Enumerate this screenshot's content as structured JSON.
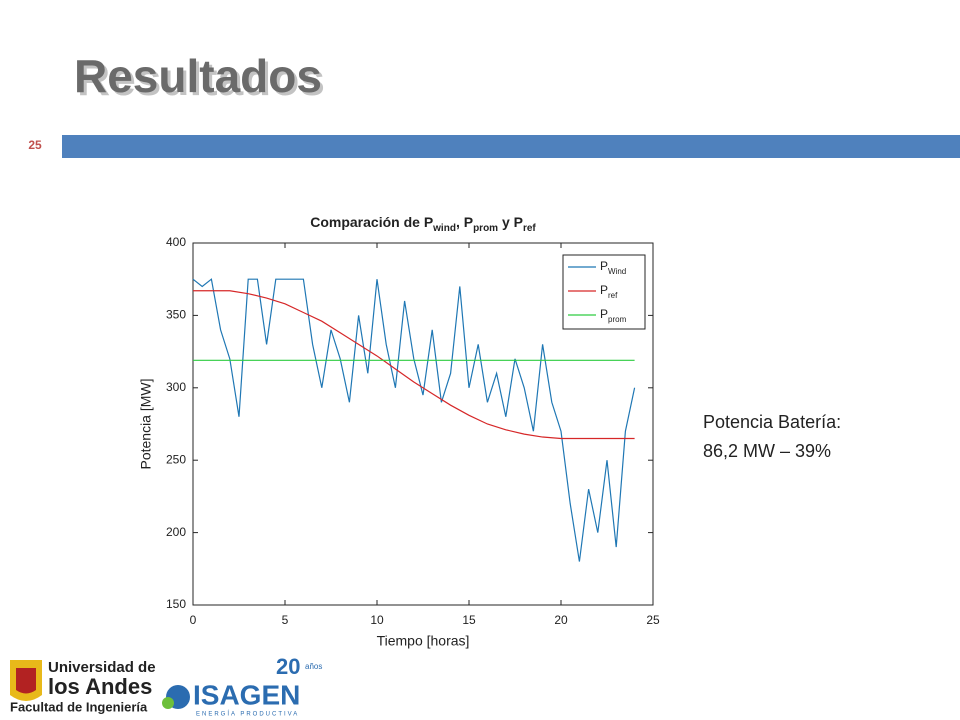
{
  "slide_title": "Resultados",
  "slide_number": "25",
  "side_text": [
    "Potencia Batería:",
    "86,2 MW – 39%"
  ],
  "logos": {
    "uandes": [
      "Universidad de",
      "los Andes",
      "Facultad de Ingeniería"
    ],
    "isagen": "ISAGEN",
    "isagen_tagline": "ENERGÍA PRODUCTIVA",
    "anniversary": "20",
    "anniversary_word": "años"
  },
  "chart_data": {
    "type": "line",
    "title_parts": [
      [
        "Comparación de P",
        false
      ],
      [
        "wind",
        true
      ],
      [
        ", P",
        false
      ],
      [
        "prom",
        true
      ],
      [
        " y P",
        false
      ],
      [
        "ref",
        true
      ]
    ],
    "x_label": "Tiempo [horas]",
    "y_label": "Potencia [MW]",
    "xlim": [
      0,
      25
    ],
    "ylim": [
      150,
      400
    ],
    "xticks": [
      0,
      5,
      10,
      15,
      20,
      25
    ],
    "yticks": [
      150,
      200,
      250,
      300,
      350,
      400
    ],
    "grid": false,
    "legend": "upper right",
    "series": [
      {
        "name": "P",
        "subscript": "Wind",
        "color": "#1f77b4",
        "x": [
          0,
          0.5,
          1,
          1.5,
          2,
          2.5,
          3,
          3.5,
          4,
          4.5,
          5,
          5.5,
          6,
          6.5,
          7,
          7.5,
          8,
          8.5,
          9,
          9.5,
          10,
          10.5,
          11,
          11.5,
          12,
          12.5,
          13,
          13.5,
          14,
          14.5,
          15,
          15.5,
          16,
          16.5,
          17,
          17.5,
          18,
          18.5,
          19,
          19.5,
          20,
          20.5,
          21,
          21.5,
          22,
          22.5,
          23,
          23.5,
          24
        ],
        "values": [
          375,
          370,
          375,
          340,
          320,
          280,
          375,
          375,
          330,
          375,
          375,
          375,
          375,
          330,
          300,
          340,
          320,
          290,
          350,
          310,
          375,
          330,
          300,
          360,
          320,
          295,
          340,
          290,
          310,
          370,
          300,
          330,
          290,
          310,
          280,
          320,
          300,
          270,
          330,
          290,
          270,
          220,
          180,
          230,
          200,
          250,
          190,
          270,
          300
        ]
      },
      {
        "name": "P",
        "subscript": "ref",
        "color": "#d62728",
        "x": [
          0,
          1,
          2,
          3,
          4,
          5,
          6,
          7,
          8,
          9,
          10,
          11,
          12,
          13,
          14,
          15,
          16,
          17,
          18,
          19,
          20,
          21,
          22,
          23,
          24
        ],
        "values": [
          367,
          367,
          367,
          365,
          362,
          358,
          352,
          346,
          338,
          330,
          322,
          313,
          304,
          296,
          288,
          281,
          275,
          271,
          268,
          266,
          265,
          265,
          265,
          265,
          265
        ]
      },
      {
        "name": "P",
        "subscript": "prom",
        "color": "#2ecc40",
        "x": [
          0,
          24
        ],
        "values": [
          319,
          319
        ]
      }
    ]
  }
}
